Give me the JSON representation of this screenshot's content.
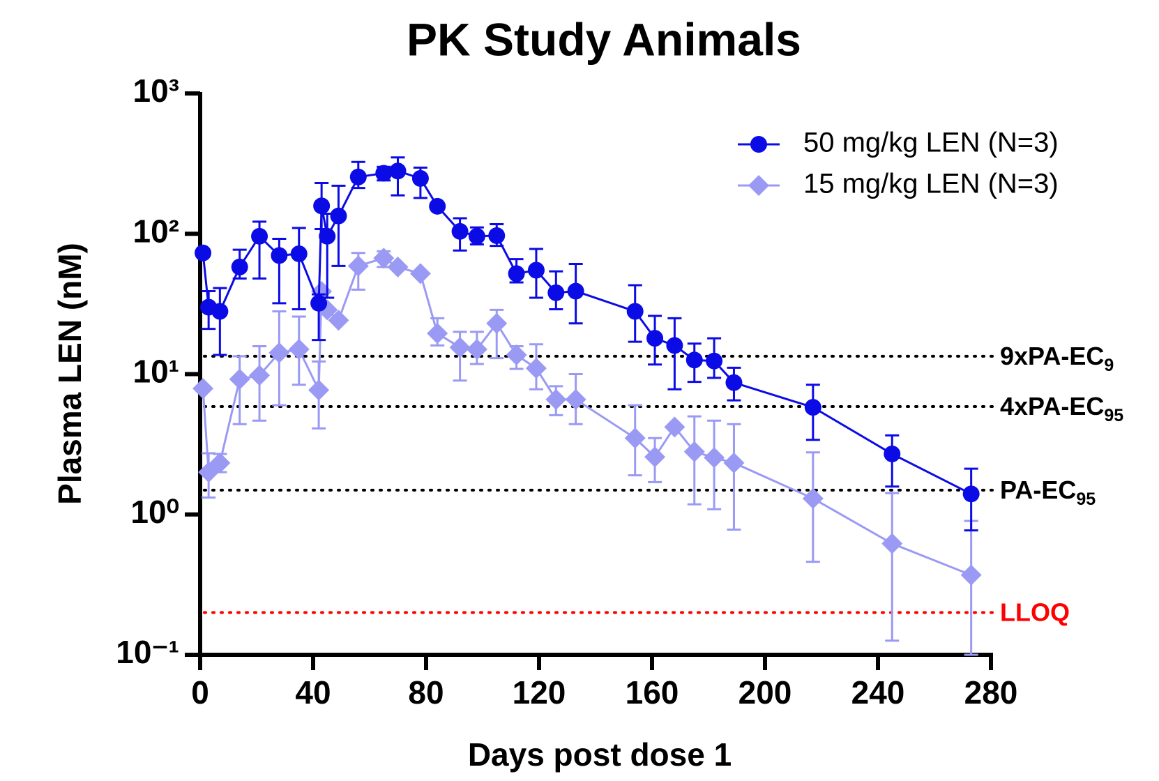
{
  "chart_data": {
    "type": "line",
    "title": "PK Study Animals",
    "x_label": "Days post dose 1",
    "y_label": "Plasma LEN (nM)",
    "yscale": "log",
    "xlim": [
      0,
      280
    ],
    "xticks": [
      0,
      40,
      80,
      120,
      160,
      200,
      240,
      280
    ],
    "ylim": [
      0.1,
      1000
    ],
    "yticks": [
      {
        "value": 0.1,
        "label": "10⁻¹"
      },
      {
        "value": 1,
        "label": "10⁰"
      },
      {
        "value": 10,
        "label": "10¹"
      },
      {
        "value": 100,
        "label": "10²"
      },
      {
        "value": 1000,
        "label": "10³"
      }
    ],
    "legend": "upper right",
    "x": [
      1,
      3,
      7,
      14,
      21,
      28,
      35,
      42,
      43,
      45,
      49,
      56,
      65,
      70,
      78,
      84,
      92,
      98,
      105,
      112,
      119,
      126,
      133,
      154,
      161,
      168,
      175,
      182,
      189,
      217,
      245,
      273
    ],
    "series": [
      {
        "name": "50 mg/kg LEN (N=3)",
        "color": "#0b0be6",
        "marker": "circle",
        "values": [
          73,
          30,
          28,
          58,
          96,
          70,
          72,
          32,
          158,
          96,
          134,
          254,
          270,
          280,
          248,
          157,
          104,
          96,
          97,
          52,
          55,
          38,
          39,
          28,
          18,
          16,
          12.6,
          12.4,
          8.7,
          5.8,
          2.7,
          1.4
        ],
        "error_low": [
          null,
          21,
          13.7,
          48,
          48,
          32,
          29,
          17.5,
          108,
          35,
          59,
          212,
          240,
          188,
          180,
          null,
          76,
          84,
          82,
          45,
          35,
          29,
          23,
          17,
          11.7,
          7.8,
          8.8,
          9.4,
          6.5,
          3.4,
          1.58,
          0.77
        ],
        "error_high": [
          null,
          39,
          41,
          77,
          122,
          92,
          110,
          37,
          230,
          139,
          220,
          325,
          300,
          350,
          296,
          null,
          129,
          111,
          117,
          66,
          78,
          54,
          61,
          43,
          26,
          25,
          16.5,
          18,
          11.1,
          8.4,
          3.66,
          2.12
        ]
      },
      {
        "name": "15 mg/kg LEN (N=3)",
        "color": "#9a9af5",
        "marker": "diamond",
        "values": [
          7.9,
          2.0,
          2.33,
          9.2,
          9.8,
          14.2,
          15,
          7.7,
          38.8,
          28.7,
          24.2,
          59,
          67,
          58,
          52,
          19.5,
          15.5,
          15,
          23,
          13.7,
          11,
          6.6,
          6.6,
          3.5,
          2.57,
          4.2,
          2.8,
          2.54,
          2.33,
          1.3,
          0.62,
          0.37
        ],
        "error_low": [
          null,
          1.32,
          2.0,
          4.4,
          4.66,
          6,
          8.4,
          4.1,
          null,
          null,
          null,
          40,
          58,
          null,
          null,
          16,
          9,
          11.8,
          13,
          10.9,
          7.8,
          5.1,
          4.4,
          1.9,
          1.7,
          null,
          1.18,
          1.09,
          0.78,
          0.46,
          0.126,
          0.1
        ],
        "error_high": [
          null,
          2.73,
          2.7,
          13.4,
          15.8,
          28,
          25.7,
          12.3,
          null,
          null,
          null,
          73,
          75,
          null,
          null,
          25,
          20,
          20,
          28.7,
          15.8,
          16.3,
          8.2,
          10,
          6,
          3.5,
          null,
          5.0,
          4.66,
          4.4,
          2.77,
          1.42,
          0.9
        ]
      }
    ],
    "reference_lines": [
      {
        "value": 13.4,
        "color": "#000000",
        "label": {
          "text": "9xPA-EC",
          "sub": "9"
        }
      },
      {
        "value": 5.87,
        "color": "#000000",
        "label": {
          "text": "4xPA-EC",
          "sub": "95"
        }
      },
      {
        "value": 1.49,
        "color": "#000000",
        "label": {
          "text": "PA-EC",
          "sub": "95"
        }
      },
      {
        "value": 0.2,
        "color": "#ff0000",
        "label": {
          "text": "LLOQ"
        }
      }
    ]
  }
}
